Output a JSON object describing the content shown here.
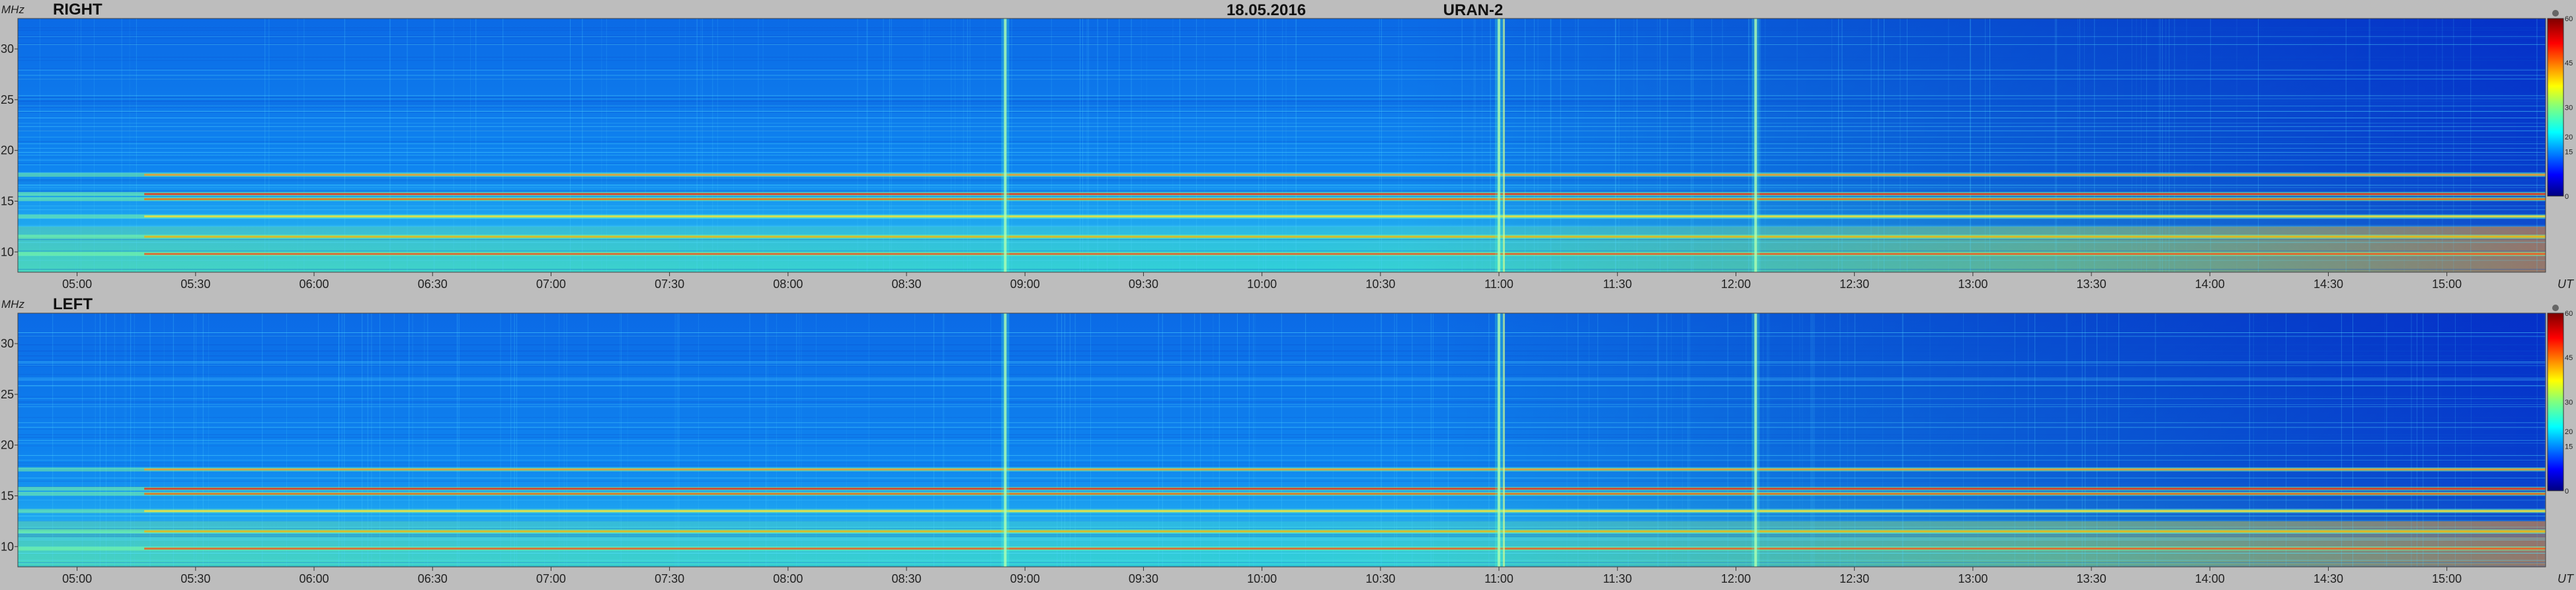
{
  "header": {
    "date": "18.05.2016",
    "instrument": "URAN-2"
  },
  "chart_data": [
    {
      "type": "heatmap",
      "panel_label": "RIGHT",
      "ylabel": "MHz",
      "xlabel": "UT",
      "x_ticks": [
        "05:00",
        "05:30",
        "06:00",
        "06:30",
        "07:00",
        "07:30",
        "08:00",
        "08:30",
        "09:00",
        "09:30",
        "10:00",
        "10:30",
        "11:00",
        "11:30",
        "12:00",
        "12:30",
        "13:00",
        "13:30",
        "14:00",
        "14:30",
        "15:00"
      ],
      "y_ticks": [
        10,
        15,
        20,
        25,
        30
      ],
      "xlim": [
        "04:45",
        "15:25"
      ],
      "ylim": [
        8,
        33
      ],
      "colorbar": {
        "ticks": [
          0,
          15,
          20,
          30,
          45,
          60
        ],
        "range": [
          0,
          60
        ],
        "colormap": "jet"
      },
      "bright_bands_mhz": [
        9.8,
        11.5,
        13.5,
        15.2,
        15.7,
        17.6
      ],
      "bursts_ut": [
        "08:55",
        "11:00",
        "12:05"
      ]
    },
    {
      "type": "heatmap",
      "panel_label": "LEFT",
      "ylabel": "MHz",
      "xlabel": "UT",
      "x_ticks": [
        "05:00",
        "05:30",
        "06:00",
        "06:30",
        "07:00",
        "07:30",
        "08:00",
        "08:30",
        "09:00",
        "09:30",
        "10:00",
        "10:30",
        "11:00",
        "11:30",
        "12:00",
        "12:30",
        "13:00",
        "13:30",
        "14:00",
        "14:30",
        "15:00"
      ],
      "y_ticks": [
        10,
        15,
        20,
        25,
        30
      ],
      "xlim": [
        "04:45",
        "15:25"
      ],
      "ylim": [
        8,
        33
      ],
      "colorbar": {
        "ticks": [
          0,
          15,
          20,
          30,
          45,
          60
        ],
        "range": [
          0,
          60
        ],
        "colormap": "jet"
      },
      "bright_bands_mhz": [
        9.8,
        11.5,
        13.5,
        15.2,
        15.7,
        17.6
      ],
      "bursts_ut": [
        "08:55",
        "11:00",
        "12:05"
      ]
    }
  ]
}
